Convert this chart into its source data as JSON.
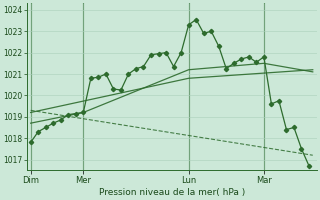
{
  "title": "Pression niveau de la mer( hPa )",
  "bg_color": "#cce8d8",
  "plot_bg_color": "#cce8d8",
  "grid_color": "#aacfbb",
  "line_color": "#2d6b2d",
  "ylim": [
    1016.5,
    1024.3
  ],
  "yticks": [
    1017,
    1018,
    1019,
    1020,
    1021,
    1022,
    1023,
    1024
  ],
  "day_labels": [
    "Dim",
    "Mer",
    "Lun",
    "Mar"
  ],
  "day_positions": [
    0,
    14,
    42,
    62
  ],
  "xlim": [
    -1,
    76
  ],
  "series1_x": [
    0,
    2,
    4,
    6,
    8,
    10,
    12,
    14,
    16,
    18,
    20,
    22,
    24,
    26,
    28,
    30,
    32,
    34,
    36,
    38,
    40,
    42,
    44,
    46,
    48,
    50,
    52,
    54,
    56,
    58,
    60,
    62,
    64,
    66,
    68,
    70,
    72,
    74
  ],
  "series1_y": [
    1017.8,
    1018.3,
    1018.5,
    1018.7,
    1018.85,
    1019.1,
    1019.15,
    1019.2,
    1020.8,
    1020.85,
    1021.0,
    1020.3,
    1020.25,
    1021.0,
    1021.25,
    1021.35,
    1021.9,
    1021.95,
    1022.0,
    1021.35,
    1022.0,
    1023.3,
    1023.55,
    1022.9,
    1023.0,
    1022.3,
    1021.25,
    1021.5,
    1021.7,
    1021.8,
    1021.55,
    1021.8,
    1019.6,
    1019.75,
    1018.4,
    1018.5,
    1017.5,
    1016.7
  ],
  "series2_x": [
    0,
    14,
    42,
    62,
    75
  ],
  "series2_y": [
    1018.7,
    1019.2,
    1021.2,
    1021.5,
    1021.1
  ],
  "series3_x": [
    0,
    42,
    75
  ],
  "series3_y": [
    1019.2,
    1020.8,
    1021.2
  ],
  "series4_x": [
    0,
    75
  ],
  "series4_y": [
    1019.3,
    1017.2
  ],
  "vline_positions": [
    14,
    42,
    62
  ]
}
